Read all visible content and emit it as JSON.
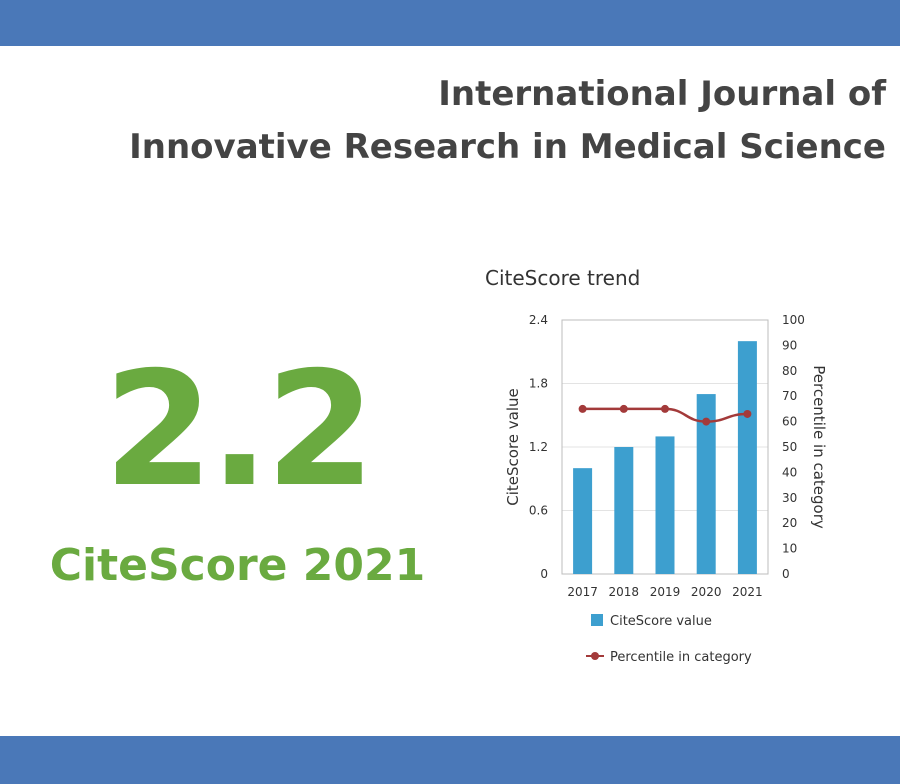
{
  "header": {
    "title_line1": "International Journal of",
    "title_line2": "Innovative Research in Medical Science"
  },
  "score": {
    "value": "2.2",
    "label": "CiteScore 2021"
  },
  "colors": {
    "band": "#4a78b8",
    "accent_green": "#6aaa40",
    "bar": "#3d9fcf",
    "line": "#a33a3a"
  },
  "chart_data": {
    "type": "bar",
    "title": "CiteScore trend",
    "categories": [
      "2017",
      "2018",
      "2019",
      "2020",
      "2021"
    ],
    "series": [
      {
        "name": "CiteScore value",
        "type": "bar",
        "axis": "left",
        "values": [
          1.0,
          1.2,
          1.3,
          1.7,
          2.2
        ]
      },
      {
        "name": "Percentile in category",
        "type": "line",
        "axis": "right",
        "values": [
          65,
          65,
          65,
          60,
          63
        ]
      }
    ],
    "ylabel": "CiteScore value",
    "y2label": "Percentile in category",
    "ylim": [
      0,
      2.4
    ],
    "y2lim": [
      0,
      100
    ],
    "yticks": [
      "0",
      "0.6",
      "1.2",
      "1.8",
      "2.4"
    ],
    "y2ticks": [
      "0",
      "10",
      "20",
      "30",
      "40",
      "50",
      "60",
      "70",
      "80",
      "90",
      "100"
    ],
    "grid": true,
    "legend_position": "bottom"
  }
}
